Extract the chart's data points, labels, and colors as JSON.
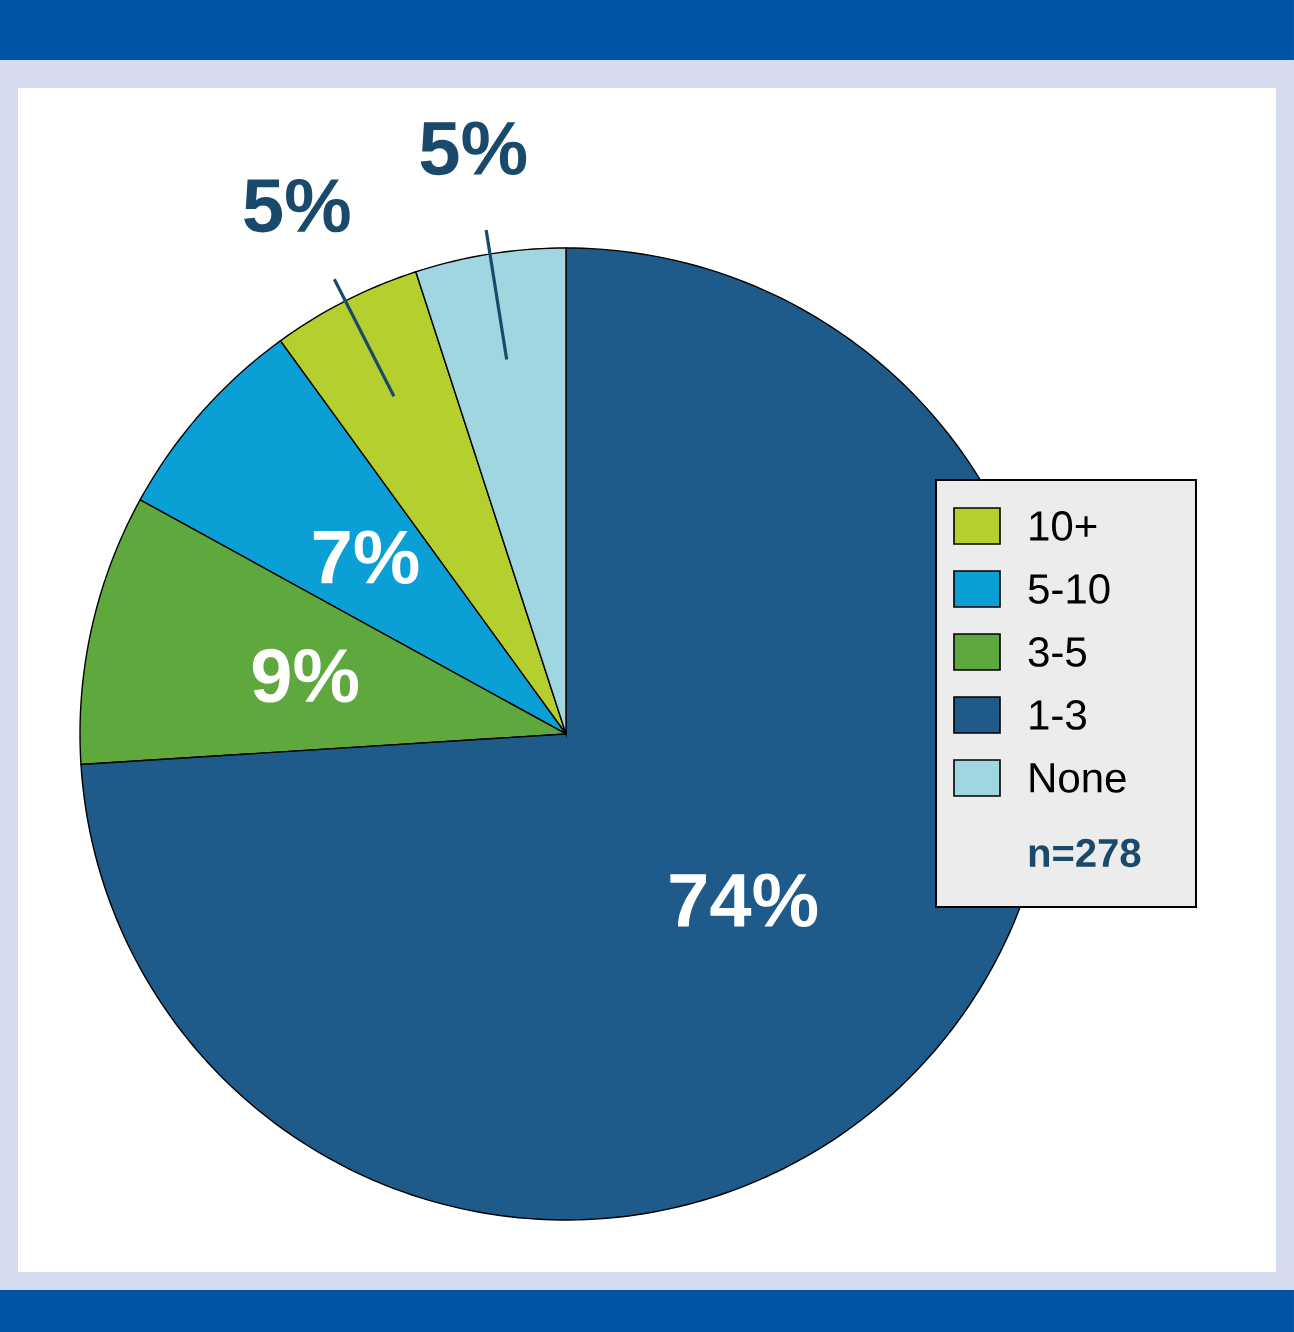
{
  "chart_data": {
    "type": "pie",
    "categories": [
      "10+",
      "5-10",
      "3-5",
      "1-3",
      "None"
    ],
    "values": [
      5,
      7,
      9,
      74,
      5
    ],
    "colors": [
      "#b5cf2e",
      "#0aa0d6",
      "#5fa83e",
      "#1f5b8a",
      "#a0d6e0"
    ],
    "value_labels": [
      "5%",
      "7%",
      "9%",
      "74%",
      "5%"
    ],
    "legend": "right",
    "annotations": [
      "n=278"
    ]
  }
}
